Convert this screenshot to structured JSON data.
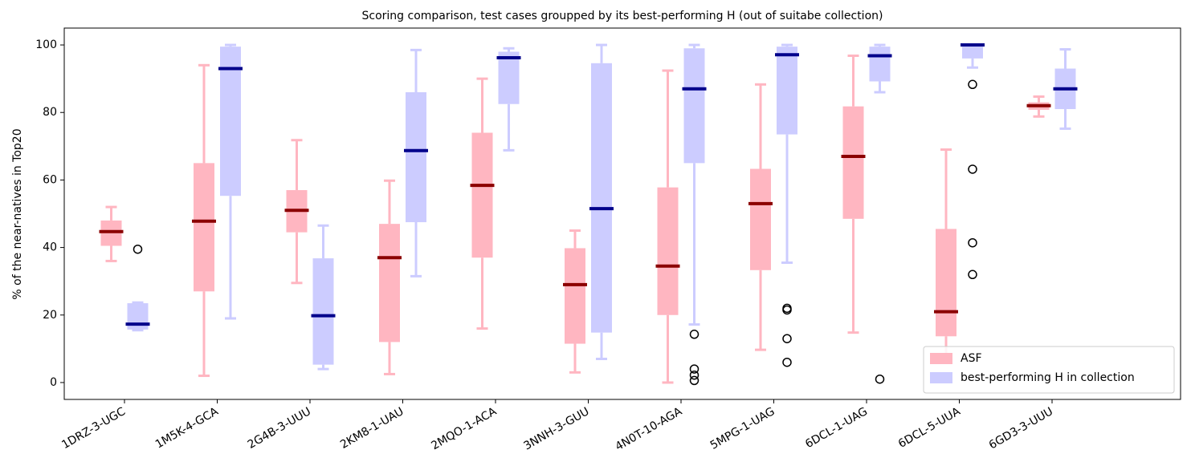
{
  "chart_data": {
    "type": "box",
    "title": "Scoring comparison, test cases groupped by its best-performing H (out of suitabe collection)",
    "y_label": "% of the near-natives in Top20",
    "categories": [
      "1DRZ-3-UGC",
      "1M5K-4-GCA",
      "2G4B-3-UUU",
      "2KM8-1-UAU",
      "2MQO-1-ACA",
      "3NNH-3-GUU",
      "4N0T-10-AGA",
      "5MPG-1-UAG",
      "6DCL-1-UAG",
      "6DCL-5-UUA",
      "6GD3-3-UUU"
    ],
    "ylim": [
      -5,
      105
    ],
    "yticks": [
      0,
      20,
      40,
      60,
      80,
      100
    ],
    "legend": "lower right",
    "series": [
      {
        "name": "ASF",
        "color": "#ffb6c1",
        "median_color": "#8b0000",
        "boxes": [
          {
            "low": 36,
            "q1": 40.5,
            "median": 44.7,
            "q3": 48,
            "high": 52,
            "outliers": []
          },
          {
            "low": 2,
            "q1": 27,
            "median": 47.8,
            "q3": 65,
            "high": 94,
            "outliers": []
          },
          {
            "low": 29.5,
            "q1": 44.5,
            "median": 51,
            "q3": 57,
            "high": 71.8,
            "outliers": []
          },
          {
            "low": 2.5,
            "q1": 12,
            "median": 37,
            "q3": 47,
            "high": 59.8,
            "outliers": []
          },
          {
            "low": 16,
            "q1": 37,
            "median": 58.4,
            "q3": 74,
            "high": 90,
            "outliers": []
          },
          {
            "low": 3,
            "q1": 11.5,
            "median": 29,
            "q3": 39.8,
            "high": 45,
            "outliers": []
          },
          {
            "low": 0,
            "q1": 20,
            "median": 34.5,
            "q3": 57.8,
            "high": 92.4,
            "outliers": []
          },
          {
            "low": 9.7,
            "q1": 33.3,
            "median": 53,
            "q3": 63.3,
            "high": 88.3,
            "outliers": []
          },
          {
            "low": 14.8,
            "q1": 48.5,
            "median": 67,
            "q3": 81.8,
            "high": 96.8,
            "outliers": []
          },
          {
            "low": 8,
            "q1": 13.7,
            "median": 21,
            "q3": 45.5,
            "high": 69,
            "outliers": []
          },
          {
            "low": 78.8,
            "q1": 80.8,
            "median": 82,
            "q3": 83,
            "high": 84.7,
            "outliers": []
          }
        ]
      },
      {
        "name": "best-performing H in collection",
        "color": "#ccccff",
        "median_color": "#00008b",
        "boxes": [
          {
            "low": 15.5,
            "q1": 15.7,
            "median": 17.3,
            "q3": 23.5,
            "high": 23.7,
            "outliers": [
              39.5
            ]
          },
          {
            "low": 19,
            "q1": 55.3,
            "median": 93,
            "q3": 99.5,
            "high": 100,
            "outliers": []
          },
          {
            "low": 4,
            "q1": 5.3,
            "median": 19.8,
            "q3": 36.8,
            "high": 46.5,
            "outliers": []
          },
          {
            "low": 31.5,
            "q1": 47.5,
            "median": 68.7,
            "q3": 86,
            "high": 98.5,
            "outliers": []
          },
          {
            "low": 68.8,
            "q1": 82.5,
            "median": 96.2,
            "q3": 98,
            "high": 99,
            "outliers": []
          },
          {
            "low": 7,
            "q1": 14.8,
            "median": 51.5,
            "q3": 94.6,
            "high": 100,
            "outliers": []
          },
          {
            "low": 17.2,
            "q1": 65,
            "median": 87,
            "q3": 99,
            "high": 100,
            "outliers": [
              14.3,
              4,
              2.2,
              0.6
            ]
          },
          {
            "low": 35.5,
            "q1": 73.5,
            "median": 97.1,
            "q3": 99.5,
            "high": 100,
            "outliers": [
              22,
              21.5,
              13,
              6
            ]
          },
          {
            "low": 86,
            "q1": 89.2,
            "median": 96.8,
            "q3": 99.5,
            "high": 100,
            "outliers": [
              1
            ]
          },
          {
            "low": 93.3,
            "q1": 96,
            "median": 100,
            "q3": 100,
            "high": 100,
            "outliers": [
              88.3,
              63.2,
              41.4,
              32
            ]
          },
          {
            "low": 75.2,
            "q1": 81,
            "median": 87,
            "q3": 93,
            "high": 98.7,
            "outliers": []
          }
        ]
      }
    ]
  }
}
